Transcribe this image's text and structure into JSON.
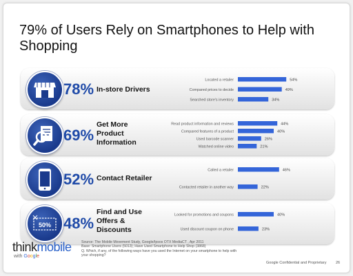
{
  "title": "79% of Users Rely on Smartphones to Help with Shopping",
  "colors": {
    "bar": "#3465d9",
    "accent": "#1f4aa8",
    "icon_bg": "#1a3a8c"
  },
  "chart_data": [
    {
      "type": "bar",
      "orientation": "horizontal",
      "headline_pct": "78%",
      "label": "In-store Drivers",
      "icon": "store-icon",
      "categories": [
        "Located a retailer",
        "Compared prices to decide",
        "Searched store's inventory"
      ],
      "values": [
        54,
        49,
        34
      ],
      "value_labels": [
        "54%",
        "49%",
        "34%"
      ],
      "xlim": [
        0,
        60
      ]
    },
    {
      "type": "bar",
      "orientation": "horizontal",
      "headline_pct": "69%",
      "label": "Get More Product Information",
      "label_lines": [
        "Get More",
        "Product",
        "Information"
      ],
      "icon": "magnifier-document-icon",
      "categories": [
        "Read product information and reviews",
        "Compared features of a product",
        "Used barcode scanner",
        "Watched online video"
      ],
      "values": [
        44,
        40,
        26,
        21
      ],
      "value_labels": [
        "44%",
        "40%",
        "26%",
        "21%"
      ],
      "xlim": [
        0,
        60
      ]
    },
    {
      "type": "bar",
      "orientation": "horizontal",
      "headline_pct": "52%",
      "label": "Contact Retailer",
      "icon": "smartphone-icon",
      "categories": [
        "Called a retailer",
        "Contacted retailer in another way"
      ],
      "values": [
        46,
        22
      ],
      "value_labels": [
        "46%",
        "22%"
      ],
      "xlim": [
        0,
        60
      ]
    },
    {
      "type": "bar",
      "orientation": "horizontal",
      "headline_pct": "48%",
      "label": "Find and Use Offers & Discounts",
      "label_lines": [
        "Find and Use",
        "Offers &",
        "Discounts"
      ],
      "icon": "coupon-icon",
      "icon_text": "50%",
      "categories": [
        "Looked for promotions and coupons",
        "Used discount coupon on phone"
      ],
      "values": [
        40,
        23
      ],
      "value_labels": [
        "40%",
        "23%"
      ],
      "xlim": [
        0,
        60
      ]
    }
  ],
  "footer": {
    "source": "Source: The Mobile Movement Study, Google/Ipsos OTX MediaCT , Apr 2011",
    "base": "Base:   Smartphone Users (5013); Have Used Smartphone to Help Shop  (3868)",
    "question": "Q. Which, if any, of the following ways have you used the Internet on your smartphone to help with",
    "question_cont": "your shopping?",
    "confidential": "Google Confidential and Proprietary",
    "page": "26"
  },
  "logo": {
    "think": "think",
    "mobile": "mobile",
    "with": "with",
    "g1": "G",
    "g2": "o",
    "g3": "o",
    "g4": "g",
    "g5": "l",
    "g6": "e"
  }
}
